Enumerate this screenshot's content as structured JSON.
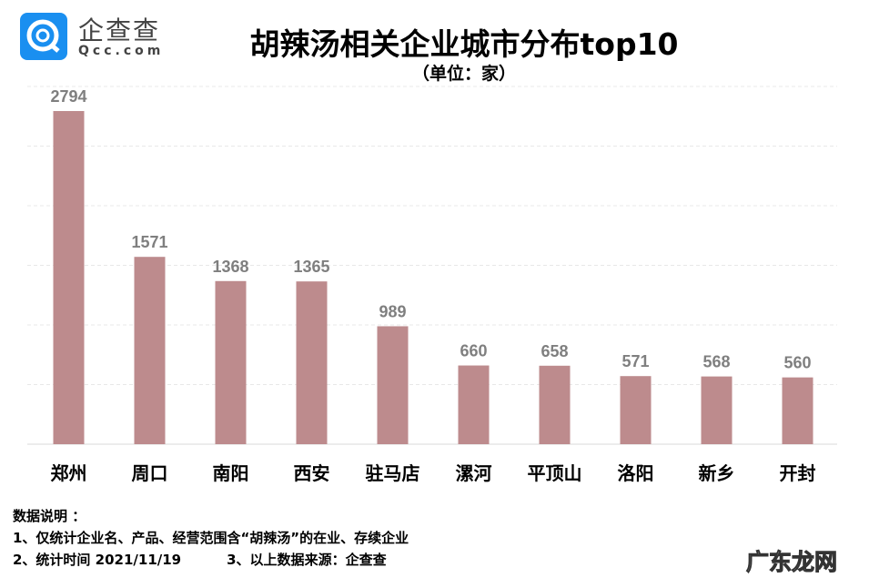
{
  "logo": {
    "name": "企查查",
    "domain": "Qcc.com",
    "color": "#1a8ff0"
  },
  "chart_data": {
    "type": "bar",
    "title": "胡辣汤相关企业城市分布top10",
    "subtitle": "（单位：家）",
    "categories": [
      "郑州",
      "周口",
      "南阳",
      "西安",
      "驻马店",
      "漯河",
      "平顶山",
      "洛阳",
      "新乡",
      "开封"
    ],
    "values": [
      2794,
      1571,
      1368,
      1365,
      989,
      660,
      658,
      571,
      568,
      560
    ],
    "ylim": [
      0,
      3000
    ],
    "grid": true,
    "bar_color": "#bd8b8d",
    "label_color": "#7f7f7f"
  },
  "notes": {
    "heading": "数据说明 ：",
    "line1": "1、仅统计企业名、产品、经营范围含“胡辣汤”的在业、存续企业",
    "line2a": "2、统计时间  2021/11/19",
    "line2b": "3、以上数据来源：企查查"
  },
  "watermark": "广东龙网"
}
